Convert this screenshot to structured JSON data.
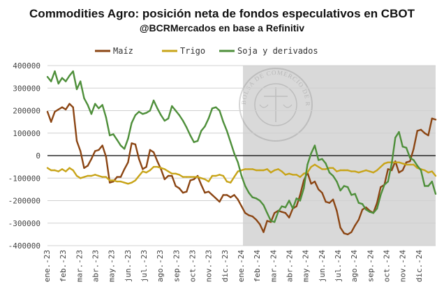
{
  "header": {
    "title": "Commodities Agro: posición neta de fondos especulativos en CBOT",
    "subtitle": "@BCRMercados en base a Refinitiv"
  },
  "watermark": {
    "text": "BOLSA DE COMERCIO DE ROSARIO"
  },
  "chart_data": {
    "type": "line",
    "title": "Commodities Agro: posición neta de fondos especulativos en CBOT",
    "subtitle": "@BCRMercados en base a Refinitiv",
    "xlabel": "",
    "ylabel": "",
    "ylim": [
      -400000,
      400000
    ],
    "yticks": [
      400000,
      300000,
      200000,
      100000,
      0,
      -100000,
      -200000,
      -300000,
      -400000
    ],
    "ytick_labels": [
      "400000",
      "300000",
      "200000",
      "100000",
      "0",
      "-100000",
      "-200000",
      "-300000",
      "-400000"
    ],
    "xtick_labels": [
      "ene.-23",
      "feb.-23",
      "mar.-23",
      "abr.-23",
      "may.-23",
      "jun.-23",
      "jul.-23",
      "ago.-23",
      "sep.-23",
      "oct.-23",
      "nov.-23",
      "dic.-23",
      "ene.-24",
      "feb.-24",
      "mar.-24",
      "abr.-24",
      "may.-24",
      "jun.-24",
      "jul.-24",
      "ago.-24",
      "sep.-24",
      "oct.-24",
      "nov.-24",
      "dic.-24"
    ],
    "grid": "horizontal",
    "legend_position": "top",
    "shaded_region_start": "ene.-24",
    "series": [
      {
        "name": "Maíz",
        "color": "#8B4513",
        "values": [
          195000,
          150000,
          195000,
          205000,
          215000,
          205000,
          230000,
          215000,
          65000,
          20000,
          -55000,
          -45000,
          -15000,
          20000,
          25000,
          45000,
          -5000,
          -120000,
          -115000,
          -95000,
          -95000,
          -60000,
          -30000,
          55000,
          50000,
          -15000,
          -60000,
          -50000,
          25000,
          15000,
          -25000,
          -60000,
          -105000,
          -90000,
          -90000,
          -135000,
          -145000,
          -165000,
          -160000,
          -110000,
          -105000,
          -90000,
          -130000,
          -165000,
          -160000,
          -175000,
          -190000,
          -205000,
          -175000,
          -175000,
          -185000,
          -175000,
          -195000,
          -225000,
          -255000,
          -265000,
          -270000,
          -285000,
          -305000,
          -340000,
          -290000,
          -295000,
          -255000,
          -245000,
          -250000,
          -255000,
          -275000,
          -235000,
          -225000,
          -175000,
          -110000,
          -75000,
          -125000,
          -115000,
          -150000,
          -165000,
          -205000,
          -210000,
          -195000,
          -245000,
          -320000,
          -345000,
          -350000,
          -340000,
          -310000,
          -285000,
          -240000,
          -230000,
          -245000,
          -255000,
          -210000,
          -140000,
          -130000,
          -60000,
          -65000,
          -25000,
          -75000,
          -65000,
          -30000,
          -25000,
          30000,
          110000,
          115000,
          100000,
          90000,
          165000,
          160000
        ]
      },
      {
        "name": "Trigo",
        "color": "#C8A418",
        "values": [
          -55000,
          -65000,
          -65000,
          -70000,
          -60000,
          -70000,
          -55000,
          -65000,
          -90000,
          -100000,
          -95000,
          -90000,
          -90000,
          -85000,
          -90000,
          -95000,
          -95000,
          -110000,
          -110000,
          -115000,
          -115000,
          -120000,
          -125000,
          -120000,
          -110000,
          -90000,
          -70000,
          -75000,
          -65000,
          -50000,
          -50000,
          -55000,
          -60000,
          -70000,
          -80000,
          -80000,
          -85000,
          -95000,
          -95000,
          -95000,
          -95000,
          -95000,
          -100000,
          -105000,
          -115000,
          -90000,
          -90000,
          -85000,
          -90000,
          -115000,
          -120000,
          -95000,
          -70000,
          -65000,
          -60000,
          -60000,
          -60000,
          -65000,
          -65000,
          -65000,
          -60000,
          -75000,
          -65000,
          -60000,
          -70000,
          -85000,
          -80000,
          -85000,
          -85000,
          -95000,
          -80000,
          -75000,
          -50000,
          -40000,
          -50000,
          -60000,
          -60000,
          -55000,
          -55000,
          -70000,
          -65000,
          -65000,
          -65000,
          -70000,
          -70000,
          -75000,
          -70000,
          -65000,
          -70000,
          -75000,
          -65000,
          -50000,
          -35000,
          -30000,
          -30000,
          -30000,
          -30000,
          -35000,
          -40000,
          -40000,
          -40000,
          -55000,
          -60000,
          -65000,
          -75000,
          -70000,
          -90000
        ]
      },
      {
        "name": "Soja y derivados",
        "color": "#4E8F3A",
        "values": [
          350000,
          330000,
          375000,
          320000,
          345000,
          330000,
          355000,
          375000,
          295000,
          330000,
          255000,
          225000,
          185000,
          230000,
          210000,
          225000,
          170000,
          90000,
          95000,
          70000,
          45000,
          30000,
          75000,
          145000,
          180000,
          195000,
          185000,
          190000,
          200000,
          245000,
          210000,
          180000,
          155000,
          165000,
          220000,
          200000,
          180000,
          155000,
          125000,
          90000,
          60000,
          65000,
          110000,
          130000,
          165000,
          210000,
          215000,
          200000,
          150000,
          110000,
          60000,
          10000,
          -30000,
          -90000,
          -135000,
          -165000,
          -185000,
          -190000,
          -200000,
          -220000,
          -255000,
          -290000,
          -295000,
          -250000,
          -225000,
          -230000,
          -200000,
          -235000,
          -190000,
          -200000,
          -145000,
          -40000,
          10000,
          45000,
          -20000,
          -15000,
          -35000,
          -75000,
          -90000,
          -115000,
          -155000,
          -135000,
          -140000,
          -175000,
          -170000,
          -210000,
          -215000,
          -240000,
          -250000,
          -255000,
          -235000,
          -175000,
          -130000,
          -115000,
          -35000,
          80000,
          105000,
          40000,
          35000,
          -10000,
          -20000,
          -45000,
          -65000,
          -135000,
          -135000,
          -115000,
          -170000
        ]
      }
    ]
  }
}
